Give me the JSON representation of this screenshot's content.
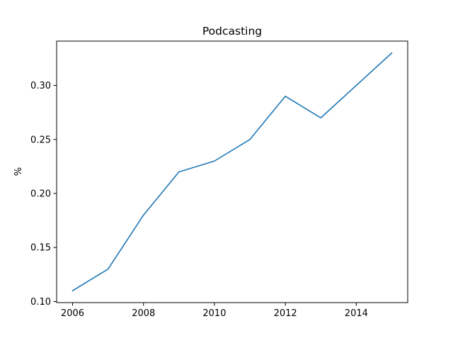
{
  "chart_data": {
    "type": "line",
    "title": "Podcasting",
    "xlabel": "",
    "ylabel": "%",
    "x": [
      2006,
      2007,
      2008,
      2009,
      2010,
      2011,
      2012,
      2013,
      2014,
      2015
    ],
    "series": [
      {
        "values": [
          0.11,
          0.13,
          0.18,
          0.22,
          0.23,
          0.25,
          0.29,
          0.27,
          0.3,
          0.33
        ],
        "color": "#1f77b4"
      }
    ],
    "xlim": [
      2005.55,
      2015.45
    ],
    "ylim": [
      0.099,
      0.341
    ],
    "xticks": [
      2006,
      2008,
      2010,
      2012,
      2014
    ],
    "xtick_labels": [
      "2006",
      "2008",
      "2010",
      "2012",
      "2014"
    ],
    "yticks": [
      0.1,
      0.15,
      0.2,
      0.25,
      0.3
    ],
    "ytick_labels": [
      "0.10",
      "0.15",
      "0.20",
      "0.25",
      "0.30"
    ],
    "grid": false,
    "legend": "none"
  }
}
